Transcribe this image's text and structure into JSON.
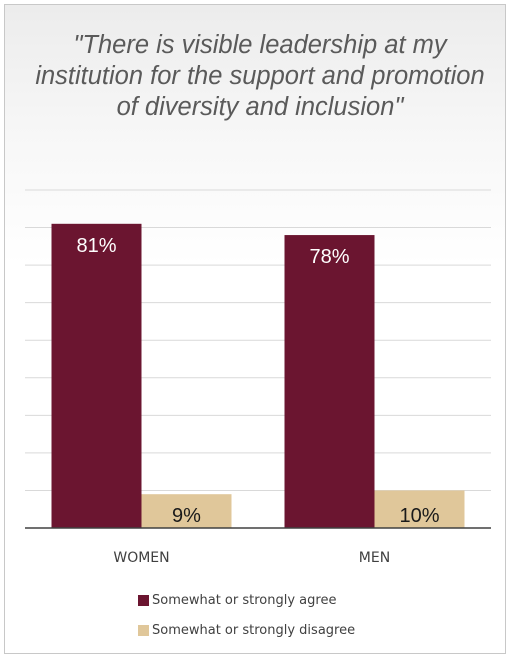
{
  "chart_data": {
    "type": "bar",
    "title": "\"There is visible leadership at my institution for the support and promotion of diversity and inclusion\"",
    "categories": [
      "WOMEN",
      "MEN"
    ],
    "series": [
      {
        "name": "Somewhat or strongly agree",
        "values": [
          81,
          78
        ],
        "labels": [
          "81%",
          "78%"
        ],
        "color": "#6b1530",
        "label_color": "#ffffff"
      },
      {
        "name": "Somewhat or strongly disagree",
        "values": [
          9,
          10
        ],
        "labels": [
          "9%",
          "10%"
        ],
        "color": "#e0c79a",
        "label_color": "#1a1a1a"
      }
    ],
    "ylim": [
      0,
      90
    ],
    "grid": true,
    "legend_position": "bottom"
  }
}
